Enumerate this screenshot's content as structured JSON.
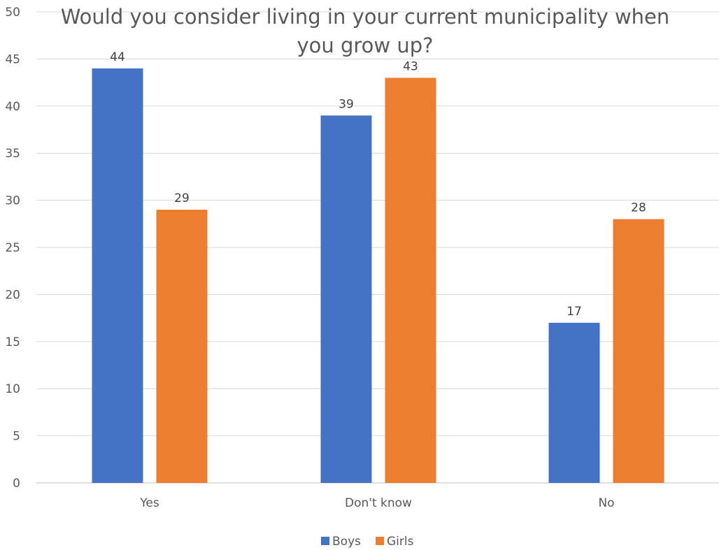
{
  "chart_data": {
    "type": "bar",
    "title_lines": [
      "Would you consider living in your current municipality when",
      "you grow up?"
    ],
    "categories": [
      "Yes",
      "Don't know",
      "No"
    ],
    "series": [
      {
        "name": "Boys",
        "values": [
          44,
          39,
          17
        ],
        "color": "#4472c4"
      },
      {
        "name": "Girls",
        "values": [
          29,
          43,
          28
        ],
        "color": "#ed7d31"
      }
    ],
    "ylim": [
      0,
      50
    ],
    "yticks": [
      0,
      5,
      10,
      15,
      20,
      25,
      30,
      35,
      40,
      45,
      50
    ],
    "grid": true,
    "legend": "bottom-center",
    "data_labels": true
  }
}
